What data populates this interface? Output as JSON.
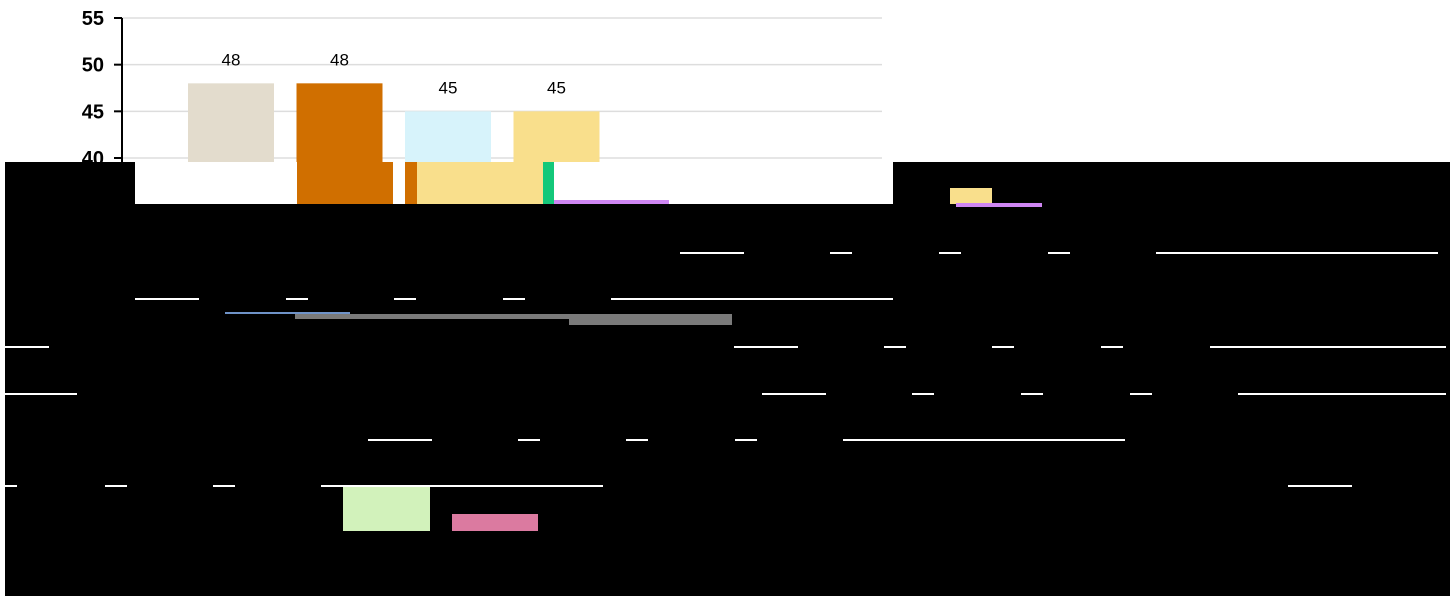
{
  "chart_data": {
    "type": "bar",
    "title": "",
    "xlabel": "",
    "ylabel": "",
    "ylim": [
      40,
      55
    ],
    "yticks": [
      40,
      45,
      50,
      55
    ],
    "grid": true,
    "legend": "none",
    "categories": [
      "",
      "",
      "",
      ""
    ],
    "values": [
      48,
      48,
      45,
      45
    ],
    "data_labels": [
      "48",
      "48",
      "45",
      "45"
    ],
    "bar_colors": [
      "#e3dccd",
      "#d06f00",
      "#d7f3fb",
      "#f9df8c"
    ]
  },
  "overlay_colors": {
    "mask": "#000000",
    "line": "#ffffff",
    "bar_green": "#d2f2bb",
    "bar_pink": "#db7aa0",
    "accent_yellow": "#f9df8c",
    "accent_violet": "#cf86f3",
    "accent_teal": "#14c87a",
    "accent_orange": "#d06f00",
    "accent_gray": "#7a7a7a"
  }
}
